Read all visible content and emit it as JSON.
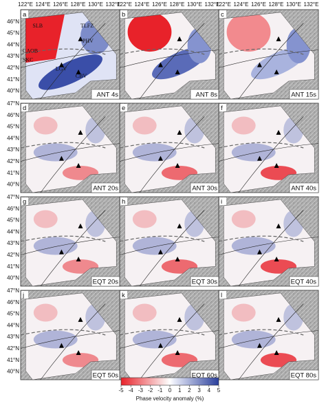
{
  "longitude_labels": [
    "122°E",
    "124°E",
    "126°E",
    "128°E",
    "130°E",
    "132°E"
  ],
  "latitude_labels": [
    "47°N",
    "46°N",
    "45°N",
    "44°N",
    "43°N",
    "42°N",
    "41°N",
    "40°N"
  ],
  "panels": [
    {
      "letter": "a",
      "label": "ANT 4s"
    },
    {
      "letter": "b",
      "label": "ANT 8s"
    },
    {
      "letter": "c",
      "label": "ANT 15s"
    },
    {
      "letter": "d",
      "label": "ANT 20s"
    },
    {
      "letter": "e",
      "label": "ANT 30s"
    },
    {
      "letter": "f",
      "label": "ANT 40s"
    },
    {
      "letter": "g",
      "label": "EQT 20s"
    },
    {
      "letter": "h",
      "label": "EQT 30s"
    },
    {
      "letter": "i",
      "label": "EQT 40s"
    },
    {
      "letter": "j",
      "label": "EQT 50s"
    },
    {
      "letter": "k",
      "label": "EQT 60s"
    },
    {
      "letter": "l",
      "label": "EQT 80s"
    }
  ],
  "annotations": [
    "SLB",
    "TLFZ",
    "CAOB",
    "SKC",
    "PHV",
    "LGV",
    "CBV"
  ],
  "colorbar": {
    "lim": [
      -5,
      5
    ],
    "ticks": [
      -5,
      -4,
      -3,
      -2,
      -1,
      0,
      1,
      2,
      3,
      4,
      5
    ],
    "label": "Phase velocity anomaly (%)"
  }
}
